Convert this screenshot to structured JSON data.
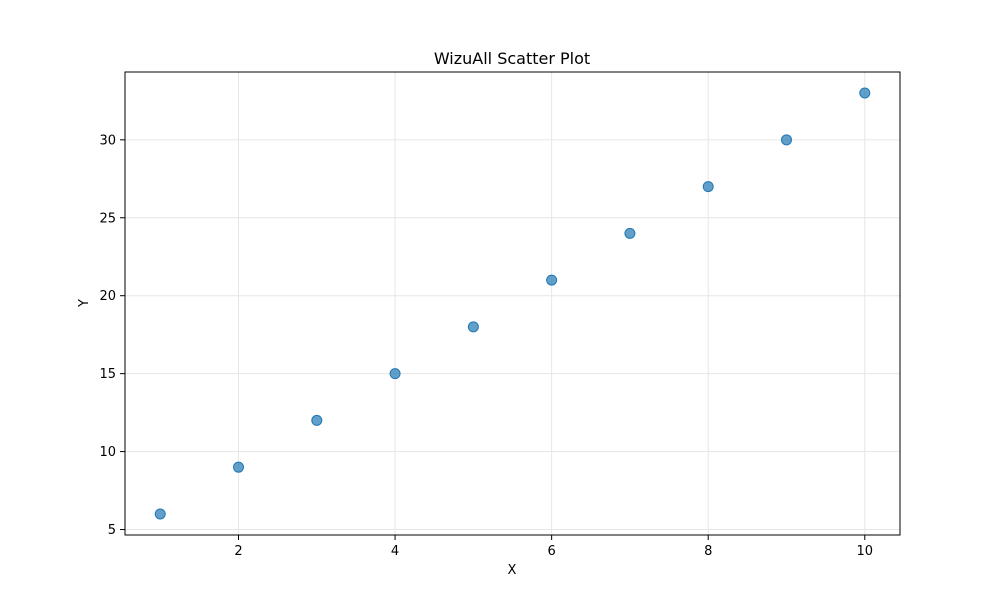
{
  "chart_data": {
    "type": "scatter",
    "title": "WizuAll Scatter Plot",
    "xlabel": "X",
    "ylabel": "Y",
    "xlim": [
      0.55,
      10.45
    ],
    "ylim": [
      4.65,
      34.35
    ],
    "xticks": [
      2,
      4,
      6,
      8,
      10
    ],
    "yticks": [
      5,
      10,
      15,
      20,
      25,
      30
    ],
    "grid": true,
    "points": [
      {
        "x": 1,
        "y": 6
      },
      {
        "x": 2,
        "y": 9
      },
      {
        "x": 3,
        "y": 12
      },
      {
        "x": 4,
        "y": 15
      },
      {
        "x": 5,
        "y": 18
      },
      {
        "x": 6,
        "y": 21
      },
      {
        "x": 7,
        "y": 24
      },
      {
        "x": 8,
        "y": 27
      },
      {
        "x": 9,
        "y": 30
      },
      {
        "x": 10,
        "y": 33
      }
    ],
    "marker_color": "#1f77b4",
    "marker_opacity": 0.7,
    "grid_color": "#e6e6e6"
  }
}
